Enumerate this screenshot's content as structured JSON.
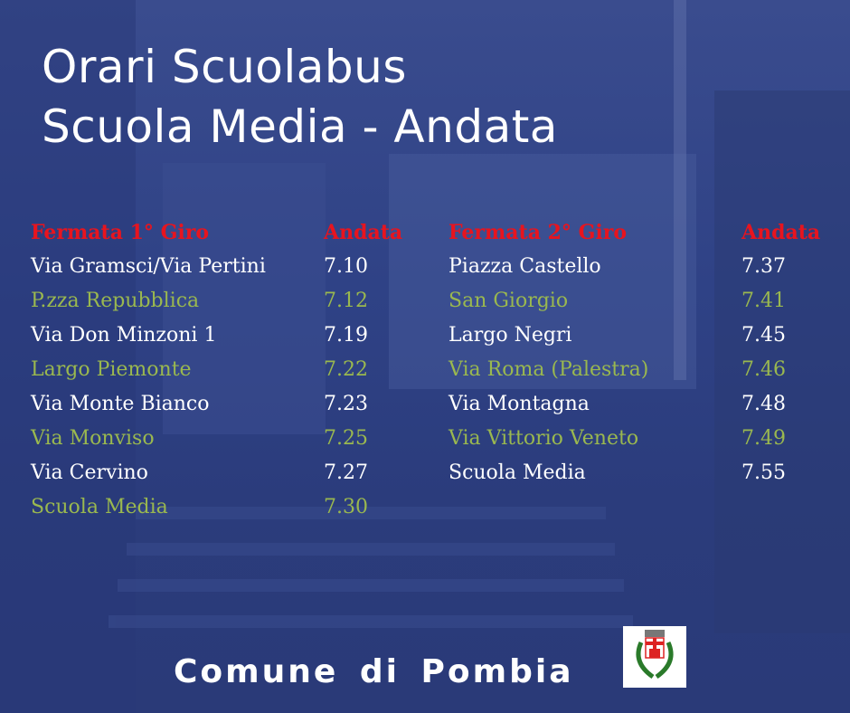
{
  "title": {
    "line1": "Orari Scuolabus",
    "line2": "Scuola Media - Andata"
  },
  "colors": {
    "header": "#e8141e",
    "white_row": "#ffffff",
    "green_row": "#9ab84f",
    "background": "#2f4286"
  },
  "tables": [
    {
      "header": {
        "stop": "Fermata 1° Giro",
        "time": "Andata"
      },
      "rows": [
        {
          "stop": "Via Gramsci/Via Pertini",
          "time": "7.10"
        },
        {
          "stop": "P.zza Repubblica",
          "time": "7.12"
        },
        {
          "stop": "Via Don Minzoni 1",
          "time": "7.19"
        },
        {
          "stop": "Largo Piemonte",
          "time": "7.22"
        },
        {
          "stop": "Via Monte Bianco",
          "time": "7.23"
        },
        {
          "stop": "Via Monviso",
          "time": "7.25"
        },
        {
          "stop": "Via Cervino",
          "time": "7.27"
        },
        {
          "stop": "Scuola Media",
          "time": "7.30"
        }
      ]
    },
    {
      "header": {
        "stop": "Fermata 2° Giro",
        "time": "Andata"
      },
      "rows": [
        {
          "stop": "Piazza Castello",
          "time": "7.37"
        },
        {
          "stop": "San Giorgio",
          "time": "7.41"
        },
        {
          "stop": "Largo Negri",
          "time": "7.45"
        },
        {
          "stop": "Via Roma (Palestra)",
          "time": "7.46"
        },
        {
          "stop": "Via Montagna",
          "time": "7.48"
        },
        {
          "stop": "Via Vittorio Veneto",
          "time": "7.49"
        },
        {
          "stop": "Scuola Media",
          "time": "7.55"
        }
      ]
    }
  ],
  "footer": {
    "text": "Comune  di  Pombia",
    "logo": "coat-of-arms"
  }
}
